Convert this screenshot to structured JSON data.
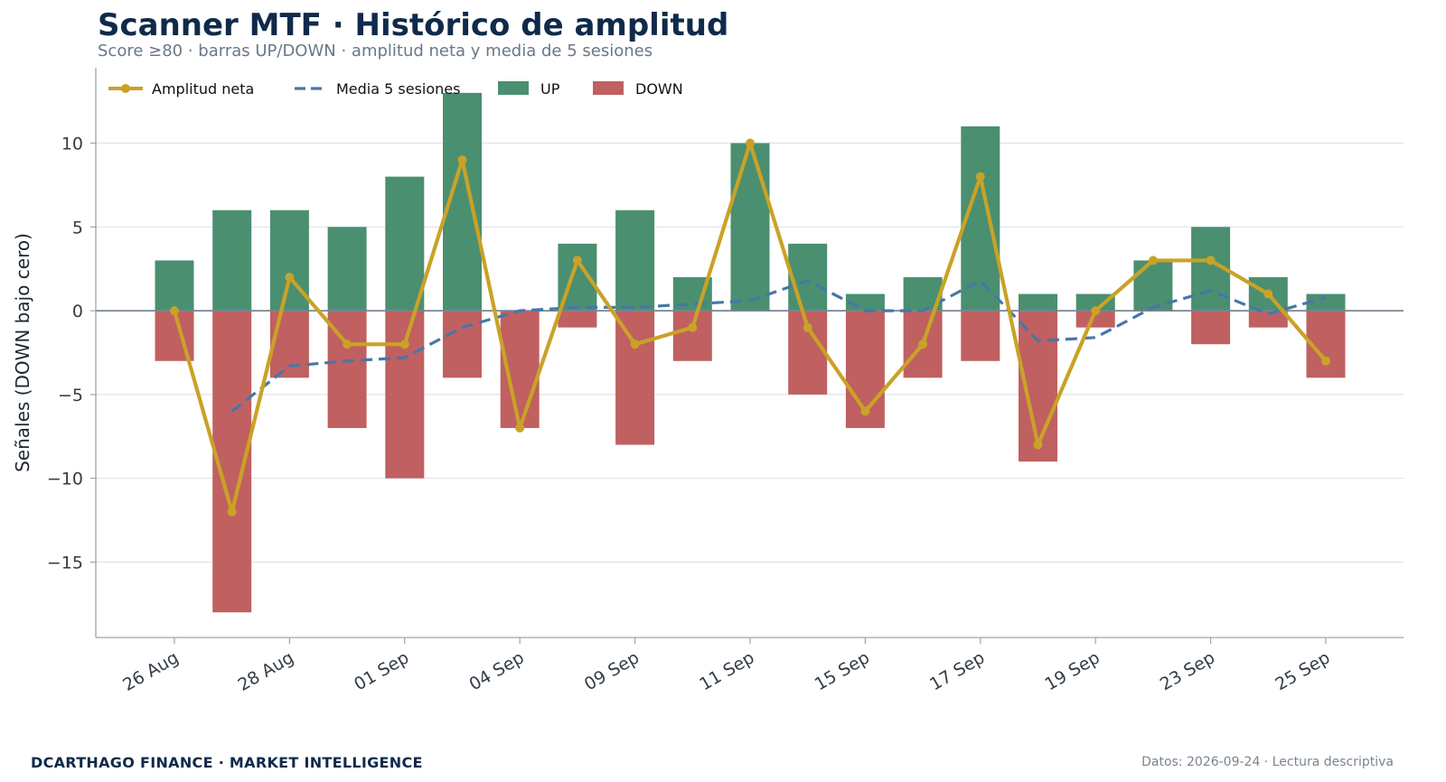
{
  "header": {
    "title": "Scanner MTF · Histórico de amplitud",
    "subtitle": "Score ≥80 · barras UP/DOWN · amplitud neta y media de 5 sesiones"
  },
  "footer": {
    "brand": "DCARTHAGO FINANCE · MARKET INTELLIGENCE",
    "note": "Datos: 2026-09-24 · Lectura descriptiva"
  },
  "colors": {
    "up": "#4a8f70",
    "down": "#c06060",
    "net": "#c9a227",
    "ma": "#4677a8",
    "grid": "#dde3ea",
    "axis": "#9aa5b1",
    "zero": "#7a8591",
    "text": "#333d47"
  },
  "chart_data": {
    "type": "bar",
    "ylabel": "Señales (DOWN bajo cero)",
    "ylim": [
      -19.5,
      14.5
    ],
    "yticks": [
      10,
      5,
      0,
      -5,
      -10,
      -15
    ],
    "ytick_labels": [
      "10",
      "5",
      "0",
      "−5",
      "−10",
      "−15"
    ],
    "grid": true,
    "legend_position": "top-left",
    "legend": [
      "Amplitud neta",
      "Media 5 sesiones",
      "UP",
      "DOWN"
    ],
    "sessions": 21,
    "xtick_sessions": [
      0,
      2,
      4,
      6,
      8,
      10,
      12,
      14,
      16,
      18,
      20
    ],
    "xtick_labels": [
      "26 Aug",
      "28 Aug",
      "01 Sep",
      "04 Sep",
      "09 Sep",
      "11 Sep",
      "15 Sep",
      "17 Sep",
      "19 Sep",
      "23 Sep",
      "25 Sep"
    ],
    "series": [
      {
        "name": "UP",
        "values": [
          3,
          6,
          6,
          5,
          8,
          13,
          0,
          4,
          6,
          2,
          10,
          4,
          1,
          2,
          11,
          1,
          1,
          3,
          5,
          2,
          1
        ]
      },
      {
        "name": "DOWN",
        "values": [
          -3,
          -18,
          -4,
          -7,
          -10,
          -4,
          -7,
          -1,
          -8,
          -3,
          0,
          -5,
          -7,
          -4,
          -3,
          -9,
          -1,
          0,
          -2,
          -1,
          -4
        ]
      },
      {
        "name": "Amplitud neta",
        "values": [
          0,
          -12,
          2,
          -2,
          -2,
          9,
          -7,
          3,
          -2,
          -1,
          10,
          -1,
          -6,
          -2,
          8,
          -8,
          0,
          3,
          3,
          1,
          -3
        ]
      },
      {
        "name": "Media 5 sesiones",
        "values": [
          null,
          -6,
          -3.3,
          -3,
          -2.8,
          -1,
          0,
          0.2,
          0.2,
          0.4,
          0.6,
          1.8,
          0,
          0,
          1.8,
          -1.8,
          -1.6,
          0.2,
          1.2,
          -0.2,
          0.8
        ]
      }
    ]
  }
}
